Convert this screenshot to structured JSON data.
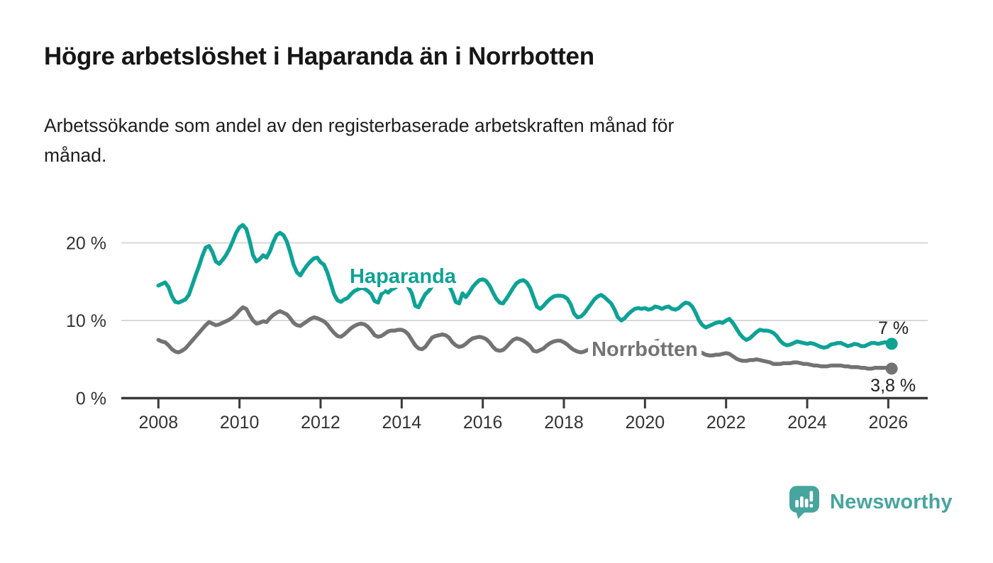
{
  "header": {
    "title": "Högre arbetslöshet i Haparanda än i Norrbotten",
    "subtitle_line1": "Arbetssökande som andel av den registerbaserade arbetskraften månad för",
    "subtitle_line2": "månad."
  },
  "chart_data": {
    "type": "line",
    "title": "Högre arbetslöshet i Haparanda än i Norrbotten",
    "subtitle": "Arbetssökande som andel av den registerbaserade arbetskraften månad för månad.",
    "unit": "%",
    "frequency": "monthly",
    "x_start": "2008-01",
    "x_end": "2026-02",
    "ylim": [
      0,
      23
    ],
    "grid": "horizontal",
    "y_axis": {
      "ticks": [
        0,
        10,
        20
      ],
      "tick_labels": [
        "0 %",
        "10 %",
        "20 %"
      ]
    },
    "x_axis": {
      "ticks": [
        2008,
        2010,
        2012,
        2014,
        2016,
        2018,
        2020,
        2022,
        2024,
        2026
      ],
      "tick_labels": [
        "2008",
        "2010",
        "2012",
        "2014",
        "2016",
        "2018",
        "2020",
        "2022",
        "2024",
        "2026"
      ]
    },
    "series": [
      {
        "name": "Norrbotten",
        "color": "#737373",
        "end_label": "3,8 %",
        "end_value": 3.8,
        "values": [
          7.5,
          7.3,
          7.2,
          6.8,
          6.3,
          6.0,
          5.9,
          6.1,
          6.4,
          6.9,
          7.4,
          7.9,
          8.4,
          8.9,
          9.4,
          9.8,
          9.6,
          9.4,
          9.5,
          9.7,
          9.9,
          10.1,
          10.4,
          10.8,
          11.3,
          11.7,
          11.5,
          10.7,
          10.0,
          9.6,
          9.7,
          9.9,
          9.8,
          10.3,
          10.7,
          11.0,
          11.2,
          11.0,
          10.8,
          10.3,
          9.7,
          9.4,
          9.3,
          9.6,
          9.9,
          10.2,
          10.4,
          10.3,
          10.1,
          9.9,
          9.5,
          8.9,
          8.4,
          8.0,
          7.9,
          8.2,
          8.6,
          9.0,
          9.3,
          9.5,
          9.6,
          9.5,
          9.2,
          8.7,
          8.1,
          7.9,
          8.0,
          8.3,
          8.6,
          8.7,
          8.7,
          8.8,
          8.8,
          8.6,
          8.2,
          7.5,
          6.8,
          6.4,
          6.3,
          6.6,
          7.2,
          7.8,
          8.0,
          8.1,
          8.2,
          8.1,
          7.8,
          7.2,
          6.8,
          6.6,
          6.7,
          7.0,
          7.4,
          7.7,
          7.8,
          7.9,
          7.8,
          7.6,
          7.2,
          6.6,
          6.2,
          6.1,
          6.2,
          6.6,
          7.1,
          7.5,
          7.7,
          7.6,
          7.4,
          7.1,
          6.7,
          6.1,
          6.0,
          6.2,
          6.4,
          6.8,
          7.1,
          7.3,
          7.4,
          7.4,
          7.2,
          6.9,
          6.5,
          6.2,
          6.0,
          5.9,
          6.0,
          6.2,
          6.4,
          6.6,
          6.7,
          6.8,
          6.7,
          6.5,
          6.3,
          6.1,
          6.0,
          5.9,
          6.0,
          6.1,
          6.2,
          6.3,
          6.4,
          6.5,
          6.6,
          6.6,
          6.9,
          7.3,
          7.4,
          7.3,
          7.2,
          7.1,
          7.0,
          6.9,
          6.8,
          6.8,
          6.7,
          6.6,
          6.4,
          6.2,
          6.0,
          5.8,
          5.6,
          5.5,
          5.5,
          5.6,
          5.6,
          5.7,
          5.8,
          5.7,
          5.4,
          5.1,
          4.9,
          4.8,
          4.8,
          4.9,
          4.9,
          5.0,
          4.9,
          4.8,
          4.7,
          4.6,
          4.4,
          4.4,
          4.4,
          4.5,
          4.5,
          4.5,
          4.6,
          4.6,
          4.5,
          4.4,
          4.4,
          4.3,
          4.2,
          4.2,
          4.1,
          4.1,
          4.1,
          4.2,
          4.2,
          4.2,
          4.2,
          4.1,
          4.1,
          4.0,
          4.0,
          4.0,
          3.9,
          3.9,
          3.8,
          3.8,
          3.9,
          3.9,
          3.9,
          3.9,
          3.9,
          3.8
        ]
      },
      {
        "name": "Haparanda",
        "color": "#0EA296",
        "end_label": "7 %",
        "end_value": 7.0,
        "values": [
          14.5,
          14.7,
          14.9,
          14.3,
          13.1,
          12.4,
          12.3,
          12.5,
          12.7,
          13.3,
          14.5,
          15.8,
          17.0,
          18.3,
          19.4,
          19.6,
          18.8,
          17.6,
          17.3,
          17.8,
          18.4,
          19.2,
          20.2,
          21.3,
          22.0,
          22.3,
          21.8,
          20.3,
          18.4,
          17.6,
          17.9,
          18.4,
          18.1,
          18.9,
          20.1,
          21.0,
          21.3,
          21.0,
          20.2,
          18.8,
          17.2,
          16.2,
          15.8,
          16.5,
          17.1,
          17.6,
          18.0,
          18.1,
          17.5,
          17.2,
          16.2,
          14.8,
          13.4,
          12.6,
          12.4,
          12.7,
          12.9,
          13.4,
          13.8,
          14.0,
          14.2,
          14.1,
          13.8,
          13.4,
          12.5,
          12.3,
          13.4,
          13.8,
          13.6,
          14.0,
          14.2,
          14.5,
          15.0,
          14.8,
          14.3,
          13.5,
          11.9,
          11.7,
          12.6,
          13.4,
          13.8,
          14.4,
          15.0,
          15.2,
          15.3,
          15.1,
          14.5,
          13.6,
          12.4,
          12.2,
          13.5,
          13.0,
          13.6,
          14.3,
          14.8,
          15.2,
          15.3,
          15.1,
          14.5,
          13.6,
          12.8,
          12.3,
          12.2,
          12.8,
          13.5,
          14.2,
          14.8,
          15.1,
          15.2,
          14.9,
          14.2,
          13.0,
          11.8,
          11.5,
          11.9,
          12.4,
          12.8,
          13.1,
          13.2,
          13.2,
          13.1,
          12.8,
          12.1,
          10.9,
          10.4,
          10.5,
          10.9,
          11.5,
          12.1,
          12.7,
          13.1,
          13.3,
          13.0,
          12.6,
          12.2,
          11.4,
          10.4,
          10.0,
          10.3,
          10.8,
          11.2,
          11.5,
          11.6,
          11.5,
          11.6,
          11.4,
          11.5,
          11.8,
          11.7,
          11.5,
          11.7,
          11.8,
          11.5,
          11.4,
          11.6,
          12.0,
          12.3,
          12.2,
          11.8,
          11.0,
          10.0,
          9.4,
          9.1,
          9.3,
          9.5,
          9.7,
          9.8,
          9.7,
          10.0,
          10.2,
          9.7,
          9.0,
          8.3,
          7.8,
          7.5,
          7.7,
          8.1,
          8.5,
          8.8,
          8.7,
          8.7,
          8.6,
          8.4,
          8.0,
          7.4,
          7.0,
          6.8,
          6.9,
          7.1,
          7.3,
          7.2,
          7.1,
          7.0,
          7.1,
          7.0,
          6.8,
          6.6,
          6.5,
          6.6,
          6.9,
          7.0,
          7.1,
          7.1,
          6.9,
          6.7,
          6.8,
          7.0,
          6.9,
          6.7,
          6.7,
          6.9,
          7.1,
          7.1,
          7.0,
          7.1,
          7.2,
          7.1,
          7.0
        ]
      }
    ],
    "legend_position": "inline-labels"
  },
  "colors": {
    "accent_teal": "#0EA296",
    "series_gray": "#737373",
    "gridline": "#d9d9d9",
    "axis": "#3a3a3a",
    "text": "#1e1e1e",
    "brand_teal": "#46a59e"
  },
  "branding": {
    "logo_text": "Newsworthy",
    "logo_icon": "bar-chart-speech-bubble-icon"
  }
}
